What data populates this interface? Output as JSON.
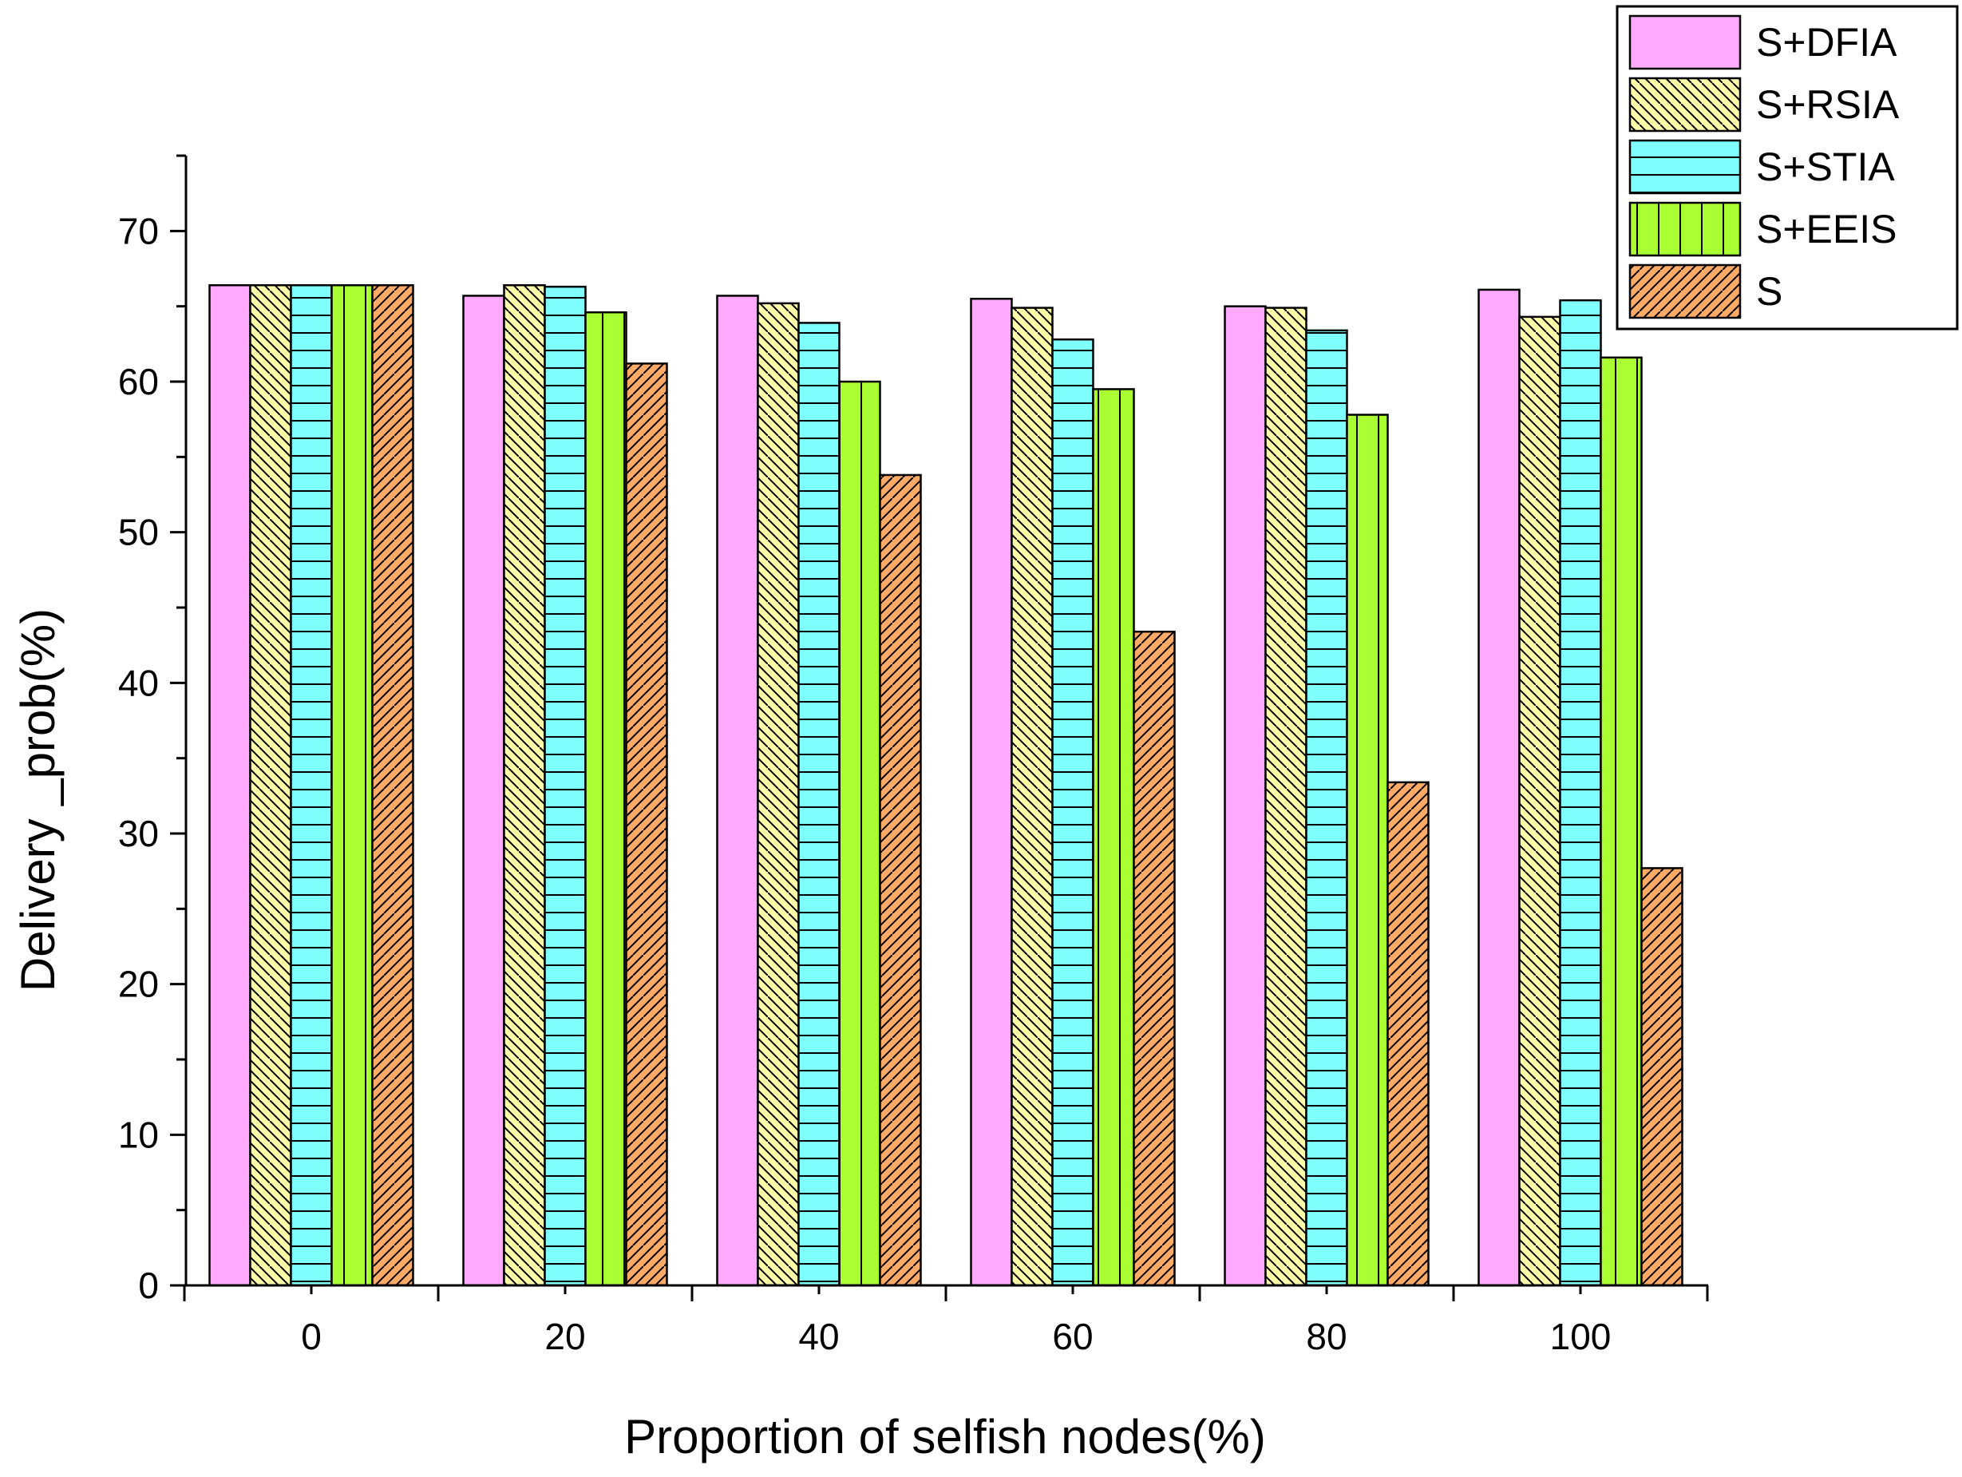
{
  "chart_data": {
    "type": "bar",
    "title": "",
    "xlabel": "Proportion of selfish nodes(%)",
    "ylabel": "Delivery _prob(%)",
    "categories": [
      "0",
      "20",
      "40",
      "60",
      "80",
      "100"
    ],
    "ylim": [
      0,
      75
    ],
    "yticks": [
      "0",
      "10",
      "20",
      "30",
      "40",
      "50",
      "60",
      "70"
    ],
    "grid": false,
    "legend_position": "top-right",
    "series": [
      {
        "name": "S+DFIA",
        "color": "#FFAAFF",
        "pattern": "solid",
        "values": [
          66.4,
          65.7,
          65.7,
          65.5,
          65.0,
          66.1
        ]
      },
      {
        "name": "S+RSIA",
        "color": "#FFFFAA",
        "pattern": "hatch-backslash",
        "values": [
          66.4,
          66.4,
          65.2,
          64.9,
          64.9,
          64.3
        ]
      },
      {
        "name": "S+STIA",
        "color": "#80FFFF",
        "pattern": "horizontal-lines",
        "values": [
          66.4,
          66.3,
          63.9,
          62.8,
          63.4,
          65.4
        ]
      },
      {
        "name": "S+EEIS",
        "color": "#AAFF33",
        "pattern": "vertical-lines",
        "values": [
          66.4,
          64.6,
          60.0,
          59.5,
          57.8,
          61.6
        ]
      },
      {
        "name": "S",
        "color": "#FFAA66",
        "pattern": "hatch-slash",
        "values": [
          66.4,
          61.2,
          53.8,
          43.4,
          33.4,
          27.7
        ]
      }
    ]
  }
}
